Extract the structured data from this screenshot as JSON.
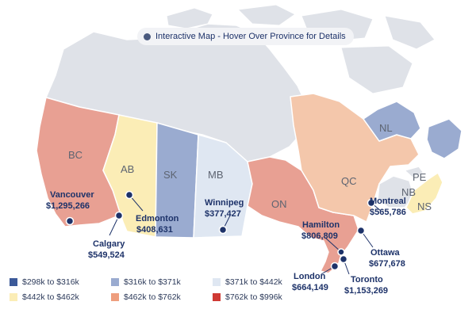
{
  "header": {
    "hint": "Interactive Map - Hover Over Province for Details"
  },
  "legend": [
    {
      "label": "$298k to $316k",
      "color": "#3c5a99"
    },
    {
      "label": "$316k to $371k",
      "color": "#9aabd0"
    },
    {
      "label": "$371k to $442k",
      "color": "#dfe7f2"
    },
    {
      "label": "$442k to $462k",
      "color": "#fbedb6"
    },
    {
      "label": "$462k to $762k",
      "color": "#ee9e7e"
    },
    {
      "label": "$762k to $996k",
      "color": "#cf3a34"
    }
  ],
  "provinces": {
    "bc": {
      "abbr": "BC",
      "color": "#e8a093"
    },
    "ab": {
      "abbr": "AB",
      "color": "#fbedb6"
    },
    "sk": {
      "abbr": "SK",
      "color": "#9aabd0"
    },
    "mb": {
      "abbr": "MB",
      "color": "#dfe7f2"
    },
    "on": {
      "abbr": "ON",
      "color": "#e8a093"
    },
    "qc": {
      "abbr": "QC",
      "color": "#f4c7ab"
    },
    "nl": {
      "abbr": "NL",
      "color": "#9aabd0"
    },
    "nb": {
      "abbr": "NB",
      "color": "#dfe2e8"
    },
    "ns": {
      "abbr": "NS",
      "color": "#fbedb6"
    },
    "pe": {
      "abbr": "PE",
      "color": "#dfe2e8"
    },
    "territories": {
      "color": "#dfe2e8"
    }
  },
  "cities": {
    "vancouver": {
      "name": "Vancouver",
      "price": "$1,295,266"
    },
    "calgary": {
      "name": "Calgary",
      "price": "$549,524"
    },
    "edmonton": {
      "name": "Edmonton",
      "price": "$408,631"
    },
    "winnipeg": {
      "name": "Winnipeg",
      "price": "$377,427"
    },
    "hamilton": {
      "name": "Hamilton",
      "price": "$806,809"
    },
    "montreal": {
      "name": "Montreal",
      "price": "$565,786"
    },
    "ottawa": {
      "name": "Ottawa",
      "price": "$677,678"
    },
    "london": {
      "name": "London",
      "price": "$664,149"
    },
    "toronto": {
      "name": "Toronto",
      "price": "$1,153,269"
    }
  }
}
